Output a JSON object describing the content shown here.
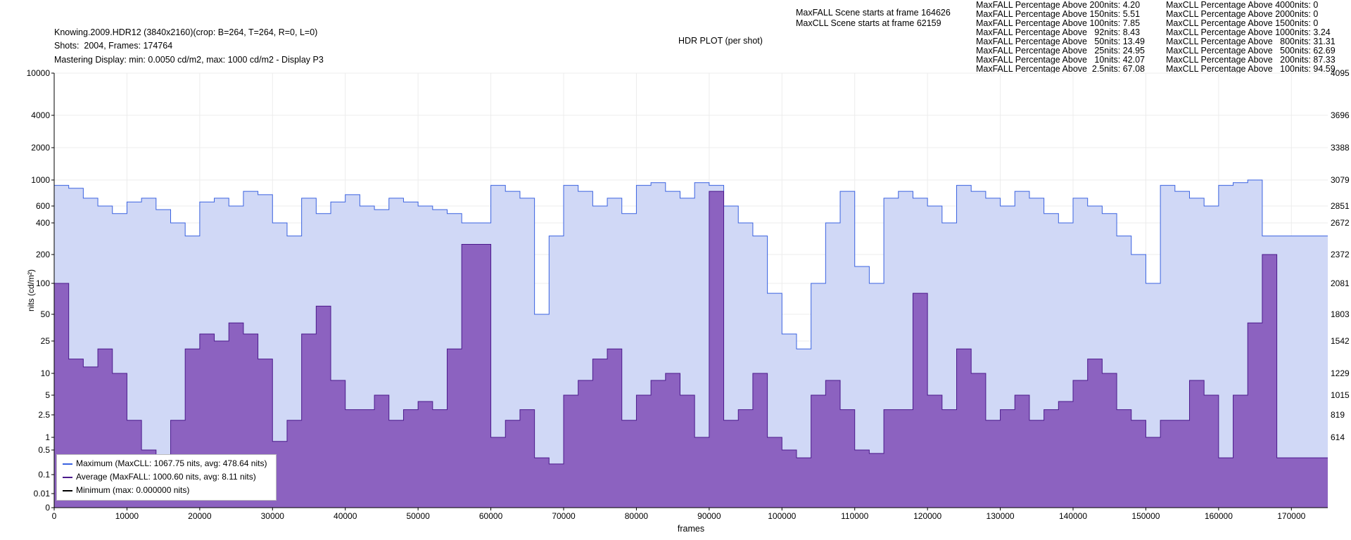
{
  "header": {
    "line1": "Knowing.2009.HDR12 (3840x2160)(crop: B=264, T=264, R=0, L=0)",
    "line2": "Shots:  2004, Frames: 174764",
    "line3": "Mastering Display: min: 0.0050 cd/m2, max: 1000 cd/m2 - Display P3",
    "plot_title": "HDR PLOT (per shot)",
    "maxfall_scene": "MaxFALL Scene starts at frame 164626",
    "maxcll_scene": "MaxCLL Scene starts at frame 62159"
  },
  "stats": {
    "maxfall": [
      "MaxFALL Percentage Above 200nits: 4.20",
      "MaxFALL Percentage Above 150nits: 5.51",
      "MaxFALL Percentage Above 100nits: 7.85",
      "MaxFALL Percentage Above   92nits: 8.43",
      "MaxFALL Percentage Above   50nits: 13.49",
      "MaxFALL Percentage Above   25nits: 24.95",
      "MaxFALL Percentage Above   10nits: 42.07",
      "MaxFALL Percentage Above  2.5nits: 67.08"
    ],
    "maxcll": [
      "MaxCLL Percentage Above 4000nits: 0",
      "MaxCLL Percentage Above 2000nits: 0",
      "MaxCLL Percentage Above 1500nits: 0",
      "MaxCLL Percentage Above 1000nits: 3.24",
      "MaxCLL Percentage Above   800nits: 31.31",
      "MaxCLL Percentage Above   500nits: 62.69",
      "MaxCLL Percentage Above   200nits: 87.33",
      "MaxCLL Percentage Above   100nits: 94.59"
    ]
  },
  "legend": [
    {
      "label": "Maximum (MaxCLL: 1067.75 nits, avg: 478.64 nits)",
      "color": "#3a62e0"
    },
    {
      "label": "Average (MaxFALL: 1000.60 nits, avg: 8.11 nits)",
      "color": "#4b1a8c"
    },
    {
      "label": "Minimum (max: 0.000000 nits)",
      "color": "#000000"
    }
  ],
  "chart_data": {
    "type": "area",
    "title": "HDR PLOT (per shot)",
    "xlabel": "frames",
    "ylabel": "nits (cd/m²)",
    "xlim": [
      0,
      175000
    ],
    "x_ticks": [
      0,
      10000,
      20000,
      30000,
      40000,
      50000,
      60000,
      70000,
      80000,
      90000,
      100000,
      110000,
      120000,
      130000,
      140000,
      150000,
      160000,
      170000
    ],
    "y_ticks_left": [
      "10000",
      "4000",
      "2000",
      "1000",
      "600",
      "400",
      "200",
      "100",
      "50",
      "25",
      "10",
      "5",
      "2.5",
      "1",
      "0.5",
      "0.1",
      "0.01",
      "0"
    ],
    "y_ticks_left_values": [
      10000,
      4000,
      2000,
      1000,
      600,
      400,
      200,
      100,
      50,
      25,
      10,
      5,
      2.5,
      1,
      0.5,
      0.1,
      0.01,
      0
    ],
    "y_ticks_right": [
      "4095",
      "3696",
      "3388",
      "3079",
      "2851",
      "2672",
      "2372",
      "2081",
      "1803",
      "1542",
      "1229",
      "1015",
      "819",
      "614"
    ],
    "grid": true,
    "legend_position": "bottom-left",
    "series": [
      {
        "name": "Maximum",
        "color": "#3a62e0",
        "fill": "#d0d8f6",
        "x": [
          0,
          2000,
          4000,
          6000,
          8000,
          10000,
          12000,
          14000,
          16000,
          18000,
          20000,
          22000,
          24000,
          26000,
          28000,
          30000,
          32000,
          34000,
          36000,
          38000,
          40000,
          42000,
          44000,
          46000,
          48000,
          50000,
          52000,
          54000,
          56000,
          58000,
          60000,
          62000,
          64000,
          66000,
          68000,
          70000,
          72000,
          74000,
          76000,
          78000,
          80000,
          82000,
          84000,
          86000,
          88000,
          90000,
          92000,
          94000,
          96000,
          98000,
          100000,
          102000,
          104000,
          106000,
          108000,
          110000,
          112000,
          114000,
          116000,
          118000,
          120000,
          122000,
          124000,
          126000,
          128000,
          130000,
          132000,
          134000,
          136000,
          138000,
          140000,
          142000,
          144000,
          146000,
          148000,
          150000,
          152000,
          154000,
          156000,
          158000,
          160000,
          162000,
          164000,
          166000,
          168000,
          170000,
          172000,
          174000,
          175000
        ],
        "values": [
          900,
          850,
          700,
          600,
          500,
          650,
          700,
          550,
          400,
          300,
          650,
          700,
          600,
          800,
          750,
          400,
          300,
          700,
          500,
          650,
          750,
          600,
          550,
          700,
          650,
          600,
          550,
          500,
          400,
          400,
          900,
          800,
          700,
          50,
          300,
          900,
          800,
          600,
          700,
          500,
          900,
          950,
          800,
          700,
          950,
          900,
          600,
          400,
          300,
          80,
          30,
          20,
          100,
          400,
          800,
          150,
          100,
          700,
          800,
          700,
          600,
          400,
          900,
          800,
          700,
          600,
          800,
          700,
          500,
          400,
          700,
          600,
          500,
          300,
          200,
          100,
          900,
          800,
          700,
          600,
          900,
          950,
          1000,
          300,
          300,
          300,
          300,
          300,
          300
        ]
      },
      {
        "name": "Average",
        "color": "#4b1a8c",
        "fill": "#8c62c0",
        "x": [
          0,
          2000,
          4000,
          6000,
          8000,
          10000,
          12000,
          14000,
          16000,
          18000,
          20000,
          22000,
          24000,
          26000,
          28000,
          30000,
          32000,
          34000,
          36000,
          38000,
          40000,
          42000,
          44000,
          46000,
          48000,
          50000,
          52000,
          54000,
          56000,
          58000,
          60000,
          62000,
          64000,
          66000,
          68000,
          70000,
          72000,
          74000,
          76000,
          78000,
          80000,
          82000,
          84000,
          86000,
          88000,
          90000,
          92000,
          94000,
          96000,
          98000,
          100000,
          102000,
          104000,
          106000,
          108000,
          110000,
          112000,
          114000,
          116000,
          118000,
          120000,
          122000,
          124000,
          126000,
          128000,
          130000,
          132000,
          134000,
          136000,
          138000,
          140000,
          142000,
          144000,
          146000,
          148000,
          150000,
          152000,
          154000,
          156000,
          158000,
          160000,
          162000,
          164000,
          166000,
          168000,
          170000,
          172000,
          174000,
          175000
        ],
        "values": [
          100,
          15,
          12,
          20,
          10,
          2,
          0.5,
          0.3,
          2,
          20,
          30,
          25,
          40,
          30,
          15,
          0.8,
          2,
          30,
          60,
          8,
          3,
          3,
          5,
          2,
          3,
          4,
          3,
          20,
          250,
          250,
          1,
          2,
          3,
          0.3,
          0.2,
          5,
          8,
          15,
          20,
          2,
          5,
          8,
          10,
          5,
          1,
          800,
          2,
          3,
          10,
          1,
          0.5,
          0.3,
          5,
          8,
          3,
          0.5,
          0.4,
          3,
          3,
          80,
          5,
          3,
          20,
          10,
          2,
          3,
          5,
          2,
          3,
          4,
          8,
          15,
          10,
          3,
          2,
          1,
          2,
          2,
          8,
          5,
          0.3,
          5,
          40,
          200,
          0.3,
          0.3,
          0.3,
          0.3,
          0.3
        ]
      },
      {
        "name": "Minimum",
        "color": "#000000",
        "x": [
          0,
          175000
        ],
        "values": [
          0,
          0
        ]
      }
    ]
  }
}
